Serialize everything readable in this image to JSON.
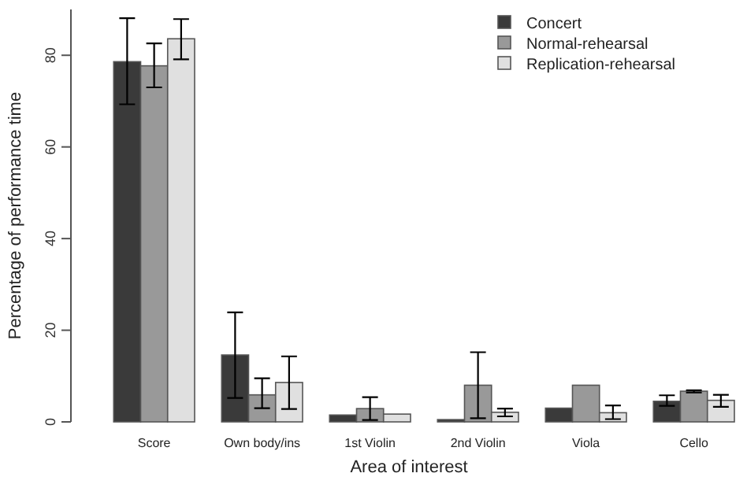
{
  "chart_data": {
    "type": "bar",
    "xlabel": "Area of interest",
    "ylabel": "Percentage of performance time",
    "categories": [
      "Score",
      "Own body/ins",
      "1st Violin",
      "2nd Violin",
      "Viola",
      "Cello"
    ],
    "series": [
      {
        "name": "Concert",
        "color": "#3a3a3a",
        "values": [
          78.6,
          14.6,
          1.5,
          0.5,
          3.0,
          4.5
        ],
        "errors": [
          [
            69.3,
            88.1
          ],
          [
            5.2,
            23.9
          ],
          null,
          null,
          null,
          [
            3.5,
            5.8
          ]
        ]
      },
      {
        "name": "Normal-rehearsal",
        "color": "#999999",
        "values": [
          77.7,
          5.9,
          2.9,
          8.0,
          8.0,
          6.7
        ],
        "errors": [
          [
            73.0,
            82.6
          ],
          [
            3.0,
            9.5
          ],
          [
            0.4,
            5.4
          ],
          [
            0.8,
            15.2
          ],
          null,
          [
            6.4,
            6.9
          ]
        ]
      },
      {
        "name": "Replication-rehearsal",
        "color": "#e0e0e0",
        "values": [
          83.6,
          8.6,
          1.7,
          2.1,
          2.0,
          4.7
        ],
        "errors": [
          [
            79.1,
            87.9
          ],
          [
            2.8,
            14.3
          ],
          null,
          [
            1.2,
            2.9
          ],
          [
            0.6,
            3.6
          ],
          [
            3.3,
            5.9
          ]
        ]
      }
    ],
    "ylim": [
      0,
      90
    ],
    "yticks": [
      0,
      20,
      40,
      60,
      80
    ],
    "grid": false,
    "legend": "top right"
  }
}
